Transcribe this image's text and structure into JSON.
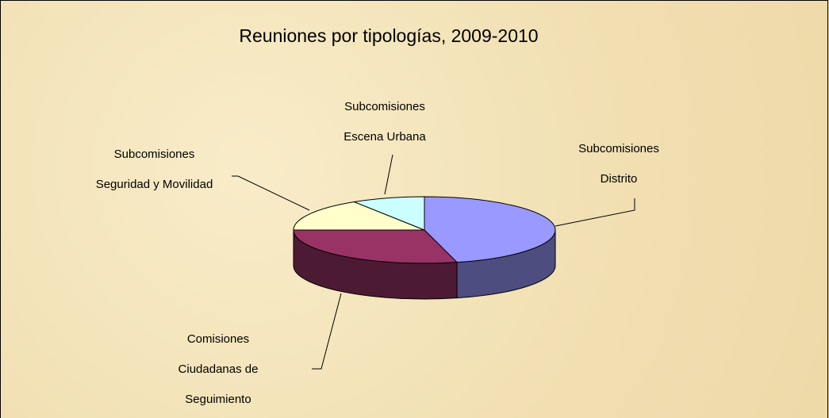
{
  "chart_data": {
    "type": "pie",
    "title": "Reuniones por tipologías, 2009-2010",
    "categories": [
      "Subcomisiones Distrito",
      "Comisiones Ciudadanas de Seguimiento",
      "Subcomisiones Seguridad y Movilidad",
      "Subcomisiones Escena Urbana"
    ],
    "values": [
      46,
      29,
      16,
      9
    ],
    "colors": [
      "#9999ff",
      "#993366",
      "#ffffcc",
      "#ccffff"
    ]
  }
}
